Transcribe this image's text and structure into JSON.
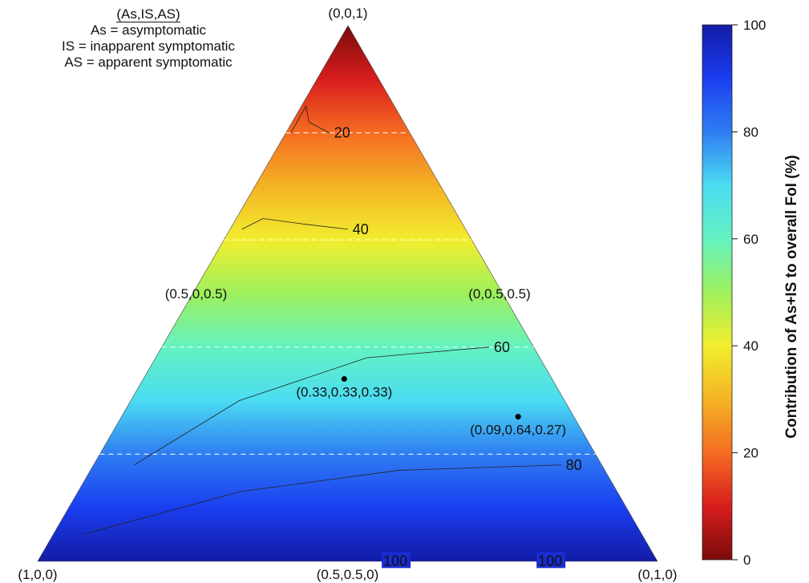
{
  "legend": {
    "title": "(As,IS,AS)",
    "lines": [
      "As = asymptomatic",
      "IS = inapparent symptomatic",
      "AS = apparent symptomatic"
    ]
  },
  "chart_data": {
    "type": "heatmap",
    "subtype": "ternary-contour",
    "components": [
      "As",
      "IS",
      "AS"
    ],
    "vertex_labels": [
      "(1,0,0)",
      "(0,1,0)",
      "(0,0,1)"
    ],
    "edge_midpoint_labels": [
      "(0.5,0.5,0)",
      "(0,0.5,0.5)",
      "(0.5,0,0.5)"
    ],
    "points": [
      {
        "label": "(0.33,0.33,0.33)",
        "As": 0.33,
        "IS": 0.33,
        "AS": 0.33
      },
      {
        "label": "(0.09,0.64,0.27)",
        "As": 0.09,
        "IS": 0.64,
        "AS": 0.27
      }
    ],
    "dashed_reference_lines_AS": [
      0.2,
      0.4,
      0.6,
      0.8
    ],
    "contours": [
      {
        "level": 20,
        "label": "20",
        "path": [
          [
            0.04,
            0.8
          ],
          [
            0.05,
            0.85
          ],
          [
            0.15,
            0.82
          ],
          [
            0.35,
            0.8
          ]
        ]
      },
      {
        "level": 40,
        "label": "40",
        "path": [
          [
            0.05,
            0.62
          ],
          [
            0.12,
            0.64
          ],
          [
            0.3,
            0.63
          ],
          [
            0.5,
            0.62
          ]
        ]
      },
      {
        "level": 60,
        "label": "60",
        "path": [
          [
            0.08,
            0.18
          ],
          [
            0.25,
            0.3
          ],
          [
            0.55,
            0.38
          ],
          [
            0.88,
            0.4
          ]
        ]
      },
      {
        "level": 80,
        "label": "80",
        "path": [
          [
            0.05,
            0.05
          ],
          [
            0.3,
            0.13
          ],
          [
            0.6,
            0.17
          ],
          [
            0.92,
            0.18
          ]
        ]
      },
      {
        "level": 100,
        "label": "100",
        "path": [
          [
            0.15,
            0.001
          ],
          [
            0.55,
            0.001
          ]
        ]
      },
      {
        "level": 100,
        "label": "100",
        "path": [
          [
            0.52,
            0.001
          ],
          [
            0.8,
            0.001
          ]
        ]
      }
    ],
    "colorbar": {
      "title": "Contribution of As+IS to overall FoI (%)",
      "range": [
        0,
        100
      ],
      "ticks": [
        0,
        20,
        40,
        60,
        80,
        100
      ],
      "palette": [
        "#7a0b0b",
        "#d81d1d",
        "#f56c22",
        "#f4b325",
        "#f2ee2e",
        "#9ef05c",
        "#64f2c1",
        "#4bdcf2",
        "#2f7df2",
        "#1a3ef0",
        "#131ba6"
      ]
    }
  }
}
